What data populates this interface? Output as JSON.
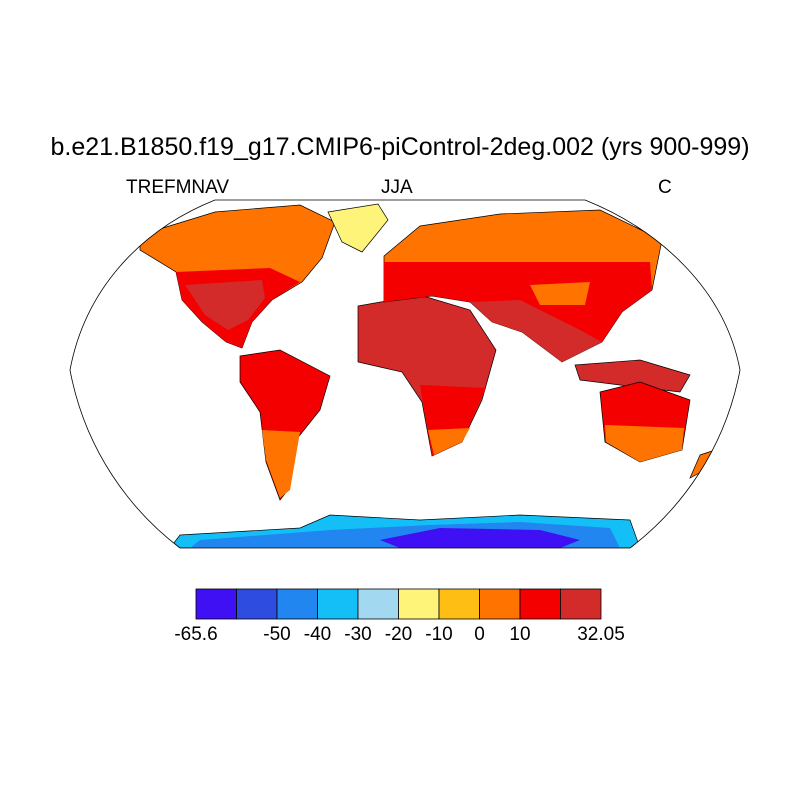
{
  "title": "b.e21.B1850.f19_g17.CMIP6-piControl-2deg.002 (yrs 900-999)",
  "left_string": "TREFMNAV",
  "center_string": "JJA",
  "right_string": "C",
  "colorbar": {
    "colors": [
      "#3f10f4",
      "#2e4ce0",
      "#2186f0",
      "#14bff8",
      "#a2d8f0",
      "#fff47a",
      "#ffbe14",
      "#ff7300",
      "#f50000",
      "#d32a2a"
    ],
    "labels": [
      "-65.6",
      "",
      "-50",
      "-40",
      "-30",
      "-20",
      "-10",
      "0",
      "10",
      "",
      "32.05"
    ]
  }
}
